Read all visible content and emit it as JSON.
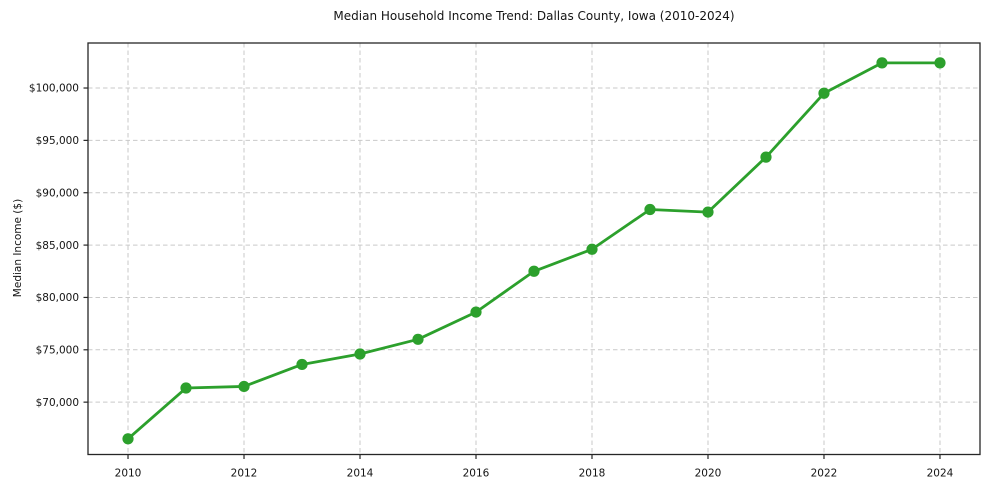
{
  "chart_data": {
    "type": "line",
    "title": "Median Household Income Trend: Dallas County, Iowa (2010-2024)",
    "xlabel": "",
    "ylabel": "Median Income ($)",
    "x": [
      2010,
      2011,
      2012,
      2013,
      2014,
      2015,
      2016,
      2017,
      2018,
      2019,
      2020,
      2021,
      2022,
      2023,
      2024
    ],
    "values": [
      66500,
      71350,
      71500,
      73600,
      74600,
      76000,
      78600,
      82500,
      84600,
      88400,
      88150,
      93400,
      99500,
      102400,
      102400
    ],
    "x_ticks": [
      2010,
      2012,
      2014,
      2016,
      2018,
      2020,
      2022,
      2024
    ],
    "x_tick_labels": [
      "2010",
      "2012",
      "2014",
      "2016",
      "2018",
      "2020",
      "2022",
      "2024"
    ],
    "y_ticks": [
      70000,
      75000,
      80000,
      85000,
      90000,
      95000,
      100000
    ],
    "y_tick_labels": [
      "$70,000",
      "$75,000",
      "$80,000",
      "$85,000",
      "$90,000",
      "$95,000",
      "$100,000"
    ],
    "xlim": [
      2009.31,
      2024.69
    ],
    "ylim": [
      65000,
      104300
    ],
    "grid": true,
    "legend": "none",
    "line_color": "#2ca02c",
    "marker": "circle",
    "grid_color": "#c9c9c9",
    "spine_color": "#262626",
    "background_color": "#ffffff"
  }
}
